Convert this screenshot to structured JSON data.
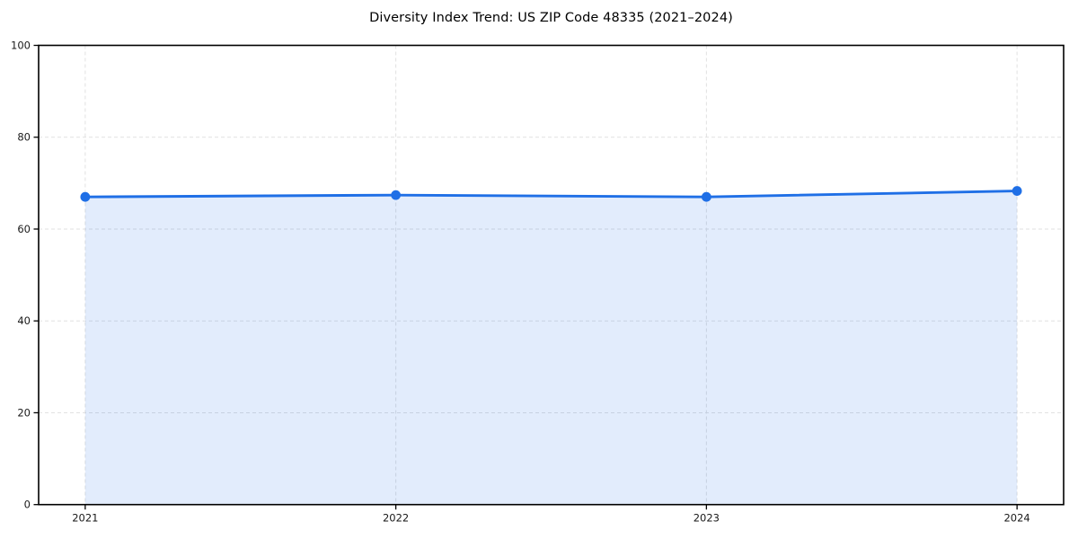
{
  "page": {
    "background_color": "#ffffff"
  },
  "chart_data": {
    "type": "area",
    "title": "Diversity Index Trend: US ZIP Code 48335 (2021–2024)",
    "categories": [
      2021,
      2022,
      2023,
      2024
    ],
    "x_tick_labels": [
      "2021",
      "2022",
      "2023",
      "2024"
    ],
    "series": [
      {
        "name": "Diversity Index",
        "values": [
          67.0,
          67.4,
          67.0,
          68.3
        ]
      }
    ],
    "xlabel": "",
    "ylabel": "",
    "ylim": [
      0,
      100
    ],
    "yticks": [
      0,
      20,
      40,
      60,
      80,
      100
    ],
    "y_tick_labels": [
      "0",
      "20",
      "40",
      "60",
      "80",
      "100"
    ],
    "x_margin_fraction": 0.05,
    "grid": true,
    "grid_style": "dashed",
    "legend_position": "none",
    "marker_shape": "circle",
    "colors": {
      "line": "#1f6fe6",
      "marker": "#1f6fe6",
      "area_fill": "rgba(31,111,230,0.13)",
      "grid": "#dedede",
      "spine": "#000000",
      "tick": "#000000",
      "tick_label": "#1a1a1a",
      "title": "#000000",
      "background": "#ffffff"
    }
  }
}
